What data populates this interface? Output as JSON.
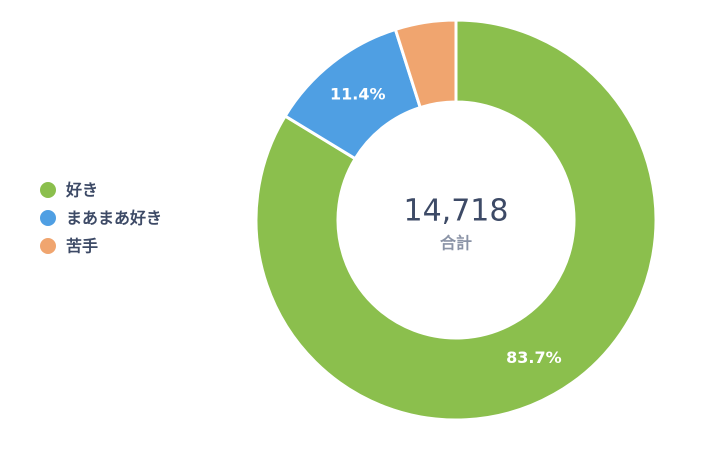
{
  "chart_data": {
    "type": "donut",
    "categories": [
      "好き",
      "まあまあ好き",
      "苦手"
    ],
    "values": [
      83.7,
      11.4,
      4.9
    ],
    "value_labels": [
      "83.7%",
      "11.4%",
      null
    ],
    "colors": [
      "#8bbf4d",
      "#4f9fe3",
      "#f0a56f"
    ],
    "center_total": {
      "value": 14718,
      "label": "14,718"
    },
    "center_label": "合計",
    "legend": "left"
  }
}
